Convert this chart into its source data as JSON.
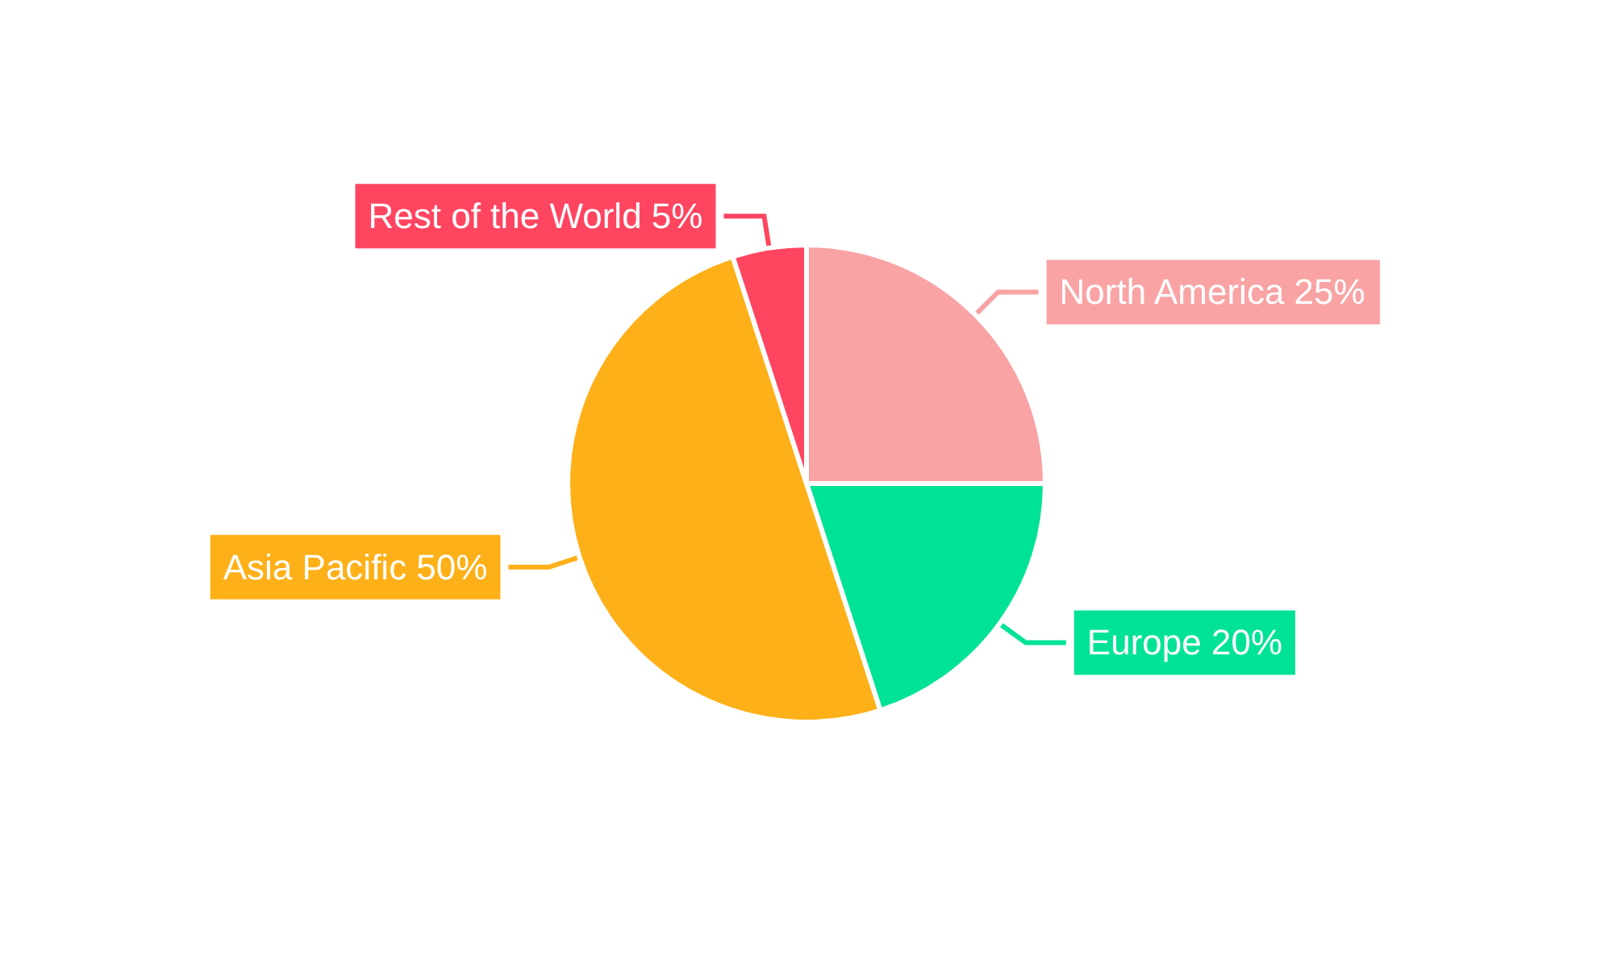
{
  "chart_data": {
    "type": "pie",
    "categories": [
      "North America",
      "Europe",
      "Asia Pacific",
      "Rest of the World"
    ],
    "values": [
      25,
      20,
      50,
      5
    ],
    "value_labels": [
      "25%",
      "20%",
      "50%",
      "5%"
    ],
    "colors": [
      "#f9a3a4",
      "#00e396",
      "#feb019",
      "#ff4560"
    ],
    "legend": false
  }
}
